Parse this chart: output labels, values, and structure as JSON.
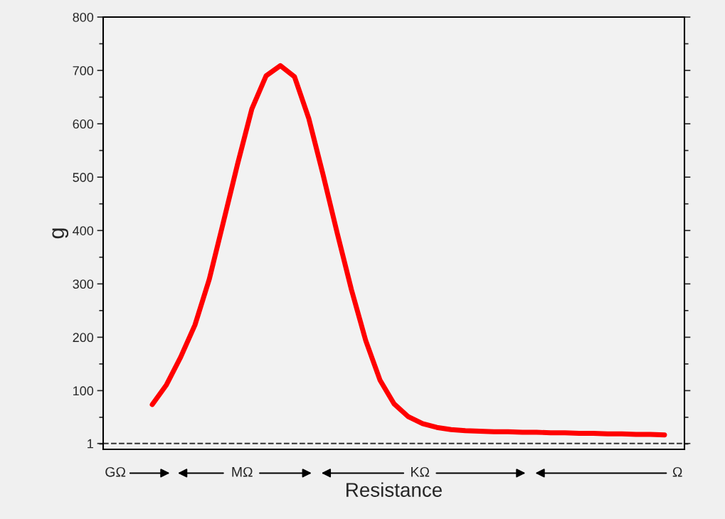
{
  "chart_data": {
    "type": "line",
    "xlabel": "Resistance",
    "ylabel": "g",
    "categories": [
      null,
      null,
      null,
      null,
      null,
      null,
      null,
      null,
      null,
      null,
      null,
      null,
      null,
      null,
      null,
      null,
      null,
      null,
      null,
      null,
      null,
      null,
      null,
      null,
      null,
      null,
      null,
      null,
      null,
      null,
      null,
      null,
      null,
      null,
      null,
      null,
      null
    ],
    "series": [
      {
        "color": "#ff0000",
        "values": [
          74,
          111,
          163,
          223,
          308,
          416,
          525,
          628,
          690,
          709,
          688,
          610,
          505,
          395,
          289,
          194,
          120,
          75,
          51,
          38,
          31,
          27,
          25,
          24,
          23,
          23,
          22,
          22,
          21,
          21,
          20,
          20,
          19,
          19,
          18,
          18,
          17
        ]
      }
    ],
    "ylim": [
      -10,
      800
    ],
    "yticks": [
      1,
      100,
      200,
      300,
      400,
      500,
      600,
      700,
      800
    ],
    "ref_lines": [
      {
        "axis": "y",
        "value": 1,
        "color": "#333333",
        "line_style": "dashed"
      }
    ],
    "annotations": [
      "GΩ",
      "MΩ",
      "KΩ",
      "Ω"
    ],
    "grid": false,
    "legend": false,
    "marker": "none",
    "line_style": "solid"
  }
}
